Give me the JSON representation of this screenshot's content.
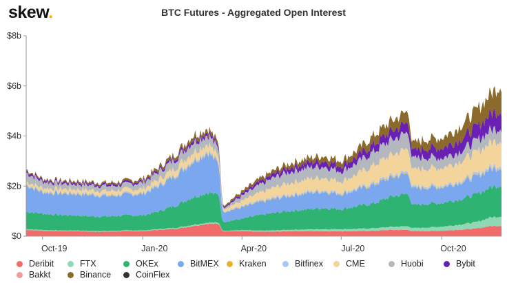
{
  "header": {
    "logo_text": "skew",
    "logo_dot": ".",
    "title": "BTC Futures - Aggregated Open Interest"
  },
  "chart_data": {
    "type": "area",
    "stacked": true,
    "title": "BTC Futures - Aggregated Open Interest",
    "xlabel": "",
    "ylabel": "",
    "ylim": [
      0,
      8
    ],
    "y_unit": "$b",
    "y_ticks": [
      "$0",
      "$2b",
      "$4b",
      "$6b",
      "$8b"
    ],
    "x_ticks": [
      "Oct-19",
      "Jan-20",
      "Apr-20",
      "Jul-20",
      "Oct-20"
    ],
    "grid": false,
    "legend_position": "bottom",
    "x": [
      "2019-09-16",
      "2019-10-01",
      "2019-10-15",
      "2019-11-01",
      "2019-11-15",
      "2019-12-01",
      "2019-12-15",
      "2020-01-01",
      "2020-01-15",
      "2020-02-01",
      "2020-02-15",
      "2020-03-01",
      "2020-03-11",
      "2020-03-14",
      "2020-04-01",
      "2020-04-15",
      "2020-05-01",
      "2020-05-15",
      "2020-06-01",
      "2020-06-15",
      "2020-07-01",
      "2020-07-15",
      "2020-08-01",
      "2020-08-15",
      "2020-09-01",
      "2020-09-04",
      "2020-09-15",
      "2020-10-01",
      "2020-10-15",
      "2020-11-01",
      "2020-11-15",
      "2020-11-25"
    ],
    "series": [
      {
        "name": "Deribit",
        "color": "#f26b6b",
        "values": [
          0.25,
          0.22,
          0.2,
          0.2,
          0.18,
          0.18,
          0.2,
          0.2,
          0.25,
          0.3,
          0.4,
          0.5,
          0.48,
          0.2,
          0.2,
          0.18,
          0.18,
          0.2,
          0.2,
          0.2,
          0.2,
          0.2,
          0.22,
          0.25,
          0.25,
          0.2,
          0.2,
          0.22,
          0.25,
          0.3,
          0.4,
          0.42
        ]
      },
      {
        "name": "FTX",
        "color": "#8fd8b3",
        "values": [
          0.03,
          0.03,
          0.03,
          0.03,
          0.03,
          0.03,
          0.03,
          0.03,
          0.03,
          0.04,
          0.05,
          0.05,
          0.05,
          0.02,
          0.04,
          0.04,
          0.05,
          0.06,
          0.07,
          0.08,
          0.08,
          0.09,
          0.1,
          0.12,
          0.15,
          0.12,
          0.14,
          0.16,
          0.2,
          0.25,
          0.35,
          0.38
        ]
      },
      {
        "name": "OKEx",
        "color": "#2fb373",
        "values": [
          0.7,
          0.65,
          0.62,
          0.6,
          0.58,
          0.58,
          0.6,
          0.6,
          0.7,
          0.9,
          1.1,
          1.2,
          1.1,
          0.35,
          0.45,
          0.6,
          0.7,
          0.75,
          0.8,
          0.85,
          0.8,
          0.9,
          1.0,
          1.2,
          1.3,
          0.9,
          0.95,
          0.95,
          1.0,
          1.1,
          1.2,
          1.25
        ]
      },
      {
        "name": "BitMEX",
        "color": "#7ba7ee",
        "values": [
          1.05,
          0.85,
          0.85,
          0.85,
          0.85,
          0.8,
          0.82,
          0.85,
          1.0,
          1.2,
          1.4,
          1.6,
          1.2,
          0.4,
          0.45,
          0.5,
          0.55,
          0.6,
          0.65,
          0.65,
          0.6,
          0.65,
          0.75,
          0.75,
          0.8,
          0.65,
          0.65,
          0.62,
          0.65,
          0.7,
          0.72,
          0.7
        ]
      },
      {
        "name": "Kraken",
        "color": "#e7b32d",
        "values": [
          0.02,
          0.02,
          0.02,
          0.02,
          0.02,
          0.02,
          0.02,
          0.02,
          0.02,
          0.03,
          0.03,
          0.03,
          0.03,
          0.01,
          0.02,
          0.02,
          0.02,
          0.02,
          0.02,
          0.02,
          0.02,
          0.02,
          0.03,
          0.03,
          0.03,
          0.02,
          0.02,
          0.02,
          0.02,
          0.03,
          0.03,
          0.03
        ]
      },
      {
        "name": "Bitfinex",
        "color": "#a9c6f5",
        "values": [
          0.04,
          0.04,
          0.04,
          0.04,
          0.04,
          0.04,
          0.04,
          0.04,
          0.05,
          0.05,
          0.06,
          0.06,
          0.05,
          0.02,
          0.04,
          0.04,
          0.05,
          0.05,
          0.05,
          0.05,
          0.05,
          0.05,
          0.06,
          0.07,
          0.08,
          0.06,
          0.06,
          0.06,
          0.07,
          0.08,
          0.09,
          0.09
        ]
      },
      {
        "name": "CME",
        "color": "#f3d49a",
        "values": [
          0.1,
          0.12,
          0.13,
          0.14,
          0.14,
          0.15,
          0.15,
          0.15,
          0.2,
          0.25,
          0.3,
          0.28,
          0.2,
          0.08,
          0.2,
          0.3,
          0.4,
          0.45,
          0.5,
          0.5,
          0.45,
          0.55,
          0.7,
          0.8,
          0.9,
          0.65,
          0.7,
          0.7,
          0.75,
          0.85,
          0.95,
          1.0
        ]
      },
      {
        "name": "Huobi",
        "color": "#b3b8bf",
        "values": [
          0.35,
          0.25,
          0.22,
          0.2,
          0.2,
          0.2,
          0.2,
          0.25,
          0.3,
          0.35,
          0.4,
          0.35,
          0.3,
          0.05,
          0.2,
          0.3,
          0.4,
          0.45,
          0.45,
          0.45,
          0.4,
          0.45,
          0.55,
          0.6,
          0.65,
          0.45,
          0.45,
          0.4,
          0.4,
          0.45,
          0.5,
          0.5
        ]
      },
      {
        "name": "Bybit",
        "color": "#6a1fb5",
        "values": [
          0.08,
          0.07,
          0.07,
          0.07,
          0.07,
          0.07,
          0.07,
          0.07,
          0.08,
          0.1,
          0.12,
          0.12,
          0.1,
          0.04,
          0.08,
          0.12,
          0.15,
          0.18,
          0.2,
          0.22,
          0.22,
          0.25,
          0.3,
          0.35,
          0.4,
          0.3,
          0.35,
          0.4,
          0.45,
          0.55,
          0.65,
          0.7
        ]
      },
      {
        "name": "Bakkt",
        "color": "#f29b9b",
        "values": [
          0,
          0,
          0,
          0,
          0,
          0,
          0,
          0,
          0,
          0,
          0,
          0,
          0,
          0,
          0,
          0,
          0,
          0,
          0,
          0,
          0,
          0,
          0,
          0,
          0,
          0,
          0,
          0,
          0,
          0,
          0,
          0
        ]
      },
      {
        "name": "Binance",
        "color": "#8b6a2b",
        "values": [
          0.05,
          0.05,
          0.05,
          0.06,
          0.06,
          0.06,
          0.07,
          0.08,
          0.1,
          0.12,
          0.15,
          0.15,
          0.12,
          0.05,
          0.1,
          0.12,
          0.14,
          0.16,
          0.18,
          0.2,
          0.2,
          0.25,
          0.35,
          0.4,
          0.45,
          0.3,
          0.35,
          0.4,
          0.5,
          0.65,
          0.8,
          1.0
        ]
      },
      {
        "name": "CoinFlex",
        "color": "#333333",
        "values": [
          0,
          0,
          0,
          0,
          0,
          0,
          0,
          0,
          0,
          0,
          0,
          0,
          0,
          0,
          0,
          0,
          0,
          0,
          0,
          0,
          0,
          0,
          0,
          0,
          0,
          0,
          0,
          0,
          0,
          0,
          0,
          0
        ]
      }
    ]
  }
}
